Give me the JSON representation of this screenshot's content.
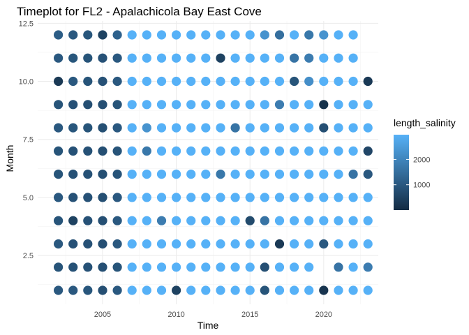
{
  "chart_data": {
    "type": "scatter",
    "title": "Timeplot for FL2 - Apalachicola Bay East Cove",
    "xlabel": "Time",
    "ylabel": "Month",
    "x_ticks": [
      2005,
      2010,
      2015,
      2020
    ],
    "y_ticks": [
      "2.5",
      "5.0",
      "7.5",
      "10.0",
      "12.5"
    ],
    "xlim": [
      2000.6,
      2023.7
    ],
    "ylim": [
      0.4,
      12.6
    ],
    "grid": true,
    "legend_position": "right",
    "colorbar": {
      "title": "length_salinity",
      "ticks": [
        1000,
        2000
      ],
      "range": [
        0,
        2976
      ],
      "low_color": "#132B43",
      "high_color": "#56B1F7"
    },
    "years": [
      2002,
      2003,
      2004,
      2005,
      2006,
      2007,
      2008,
      2009,
      2010,
      2011,
      2012,
      2013,
      2014,
      2015,
      2016,
      2017,
      2018,
      2019,
      2020,
      2021,
      2022,
      2023
    ],
    "grid_values": [
      {
        "month": 12,
        "values": [
          1100,
          1000,
          950,
          500,
          1200,
          2976,
          2976,
          2976,
          2976,
          2976,
          2976,
          2976,
          2976,
          2976,
          2300,
          1500,
          2976,
          1700,
          2300,
          2976,
          2976,
          null
        ]
      },
      {
        "month": 11,
        "values": [
          1000,
          950,
          900,
          850,
          1000,
          2976,
          2976,
          2976,
          2976,
          2976,
          2976,
          500,
          2976,
          2976,
          2976,
          2976,
          1600,
          1800,
          2976,
          2976,
          2976,
          null
        ]
      },
      {
        "month": 10,
        "values": [
          300,
          1000,
          900,
          850,
          1000,
          2976,
          2976,
          2976,
          2976,
          2976,
          2976,
          2976,
          2976,
          2976,
          2976,
          2976,
          900,
          2200,
          2976,
          2976,
          2976,
          300
        ]
      },
      {
        "month": 9,
        "values": [
          900,
          850,
          800,
          800,
          900,
          2976,
          2976,
          2976,
          2976,
          2976,
          2976,
          2976,
          2976,
          2976,
          2976,
          1800,
          2976,
          2976,
          150,
          2976,
          2976,
          2976
        ]
      },
      {
        "month": 8,
        "values": [
          1000,
          950,
          900,
          800,
          1000,
          2976,
          2300,
          2976,
          2976,
          2976,
          2976,
          2976,
          1600,
          2976,
          2976,
          2976,
          2976,
          2976,
          800,
          2976,
          2976,
          2976
        ]
      },
      {
        "month": 7,
        "values": [
          900,
          850,
          850,
          800,
          900,
          2976,
          1700,
          2976,
          2976,
          2976,
          2976,
          2976,
          2976,
          2976,
          2976,
          2976,
          2976,
          2976,
          2976,
          2976,
          2976,
          600
        ]
      },
      {
        "month": 6,
        "values": [
          900,
          850,
          850,
          800,
          900,
          2976,
          2976,
          2976,
          2976,
          2976,
          2976,
          1700,
          2976,
          2976,
          2976,
          2976,
          2976,
          2976,
          2976,
          2976,
          1600,
          1000
        ]
      },
      {
        "month": 5,
        "values": [
          1000,
          850,
          850,
          800,
          1000,
          2976,
          2976,
          2976,
          2976,
          2976,
          2976,
          2976,
          2976,
          2976,
          2976,
          2976,
          2976,
          2976,
          2976,
          2976,
          2976,
          2976
        ]
      },
      {
        "month": 4,
        "values": [
          900,
          500,
          850,
          800,
          1000,
          2976,
          2976,
          1800,
          2976,
          2976,
          2976,
          2976,
          2976,
          700,
          1600,
          2976,
          2976,
          2976,
          2976,
          2976,
          2976,
          2976
        ]
      },
      {
        "month": 3,
        "values": [
          1000,
          850,
          850,
          800,
          1000,
          2976,
          2976,
          2976,
          2976,
          2976,
          2976,
          2976,
          2976,
          2976,
          2976,
          300,
          2976,
          2976,
          1000,
          2976,
          2976,
          2976
        ]
      },
      {
        "month": 2,
        "values": [
          900,
          850,
          850,
          800,
          900,
          2976,
          2976,
          2976,
          2976,
          2976,
          2976,
          2976,
          2976,
          2976,
          800,
          2976,
          2976,
          2976,
          null,
          1600,
          2976,
          1800
        ]
      },
      {
        "month": 1,
        "values": [
          1000,
          1000,
          950,
          800,
          1000,
          2976,
          2976,
          2976,
          500,
          2976,
          2976,
          2976,
          2976,
          2976,
          900,
          2976,
          2976,
          2976,
          200,
          2976,
          2976,
          2976
        ]
      }
    ]
  }
}
